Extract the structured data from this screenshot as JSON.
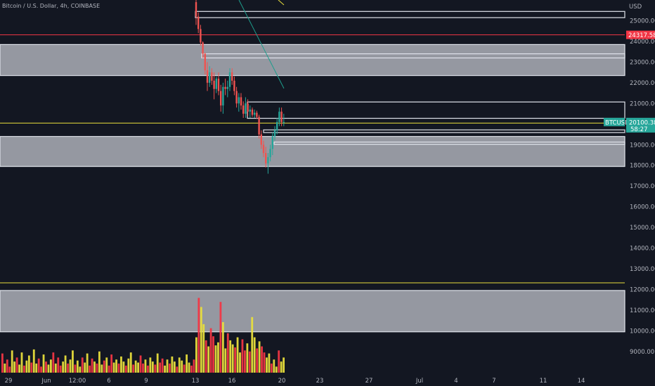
{
  "header": {
    "title": "Bitcoin / U.S. Dollar, 4h, COINBASE"
  },
  "price_axis": {
    "currency": "USD"
  },
  "chart_data": {
    "type": "candlestick",
    "title": "Bitcoin / U.S. Dollar, 4h, COINBASE",
    "ylim": [
      8200,
      25900
    ],
    "y_ticks": [
      9000,
      10000,
      11000,
      12000,
      13000,
      14000,
      15000,
      16000,
      17000,
      18000,
      19000,
      20000,
      21000,
      22000,
      23000,
      24000,
      25000
    ],
    "y_tick_labels": [
      "9000.00",
      "10000.00",
      "11000.00",
      "12000.00",
      "13000.00",
      "14000.00",
      "15000.00",
      "16000.00",
      "17000.00",
      "18000.00",
      "19000.00",
      "20000.00",
      "21000.00",
      "22000.00",
      "23000.00",
      "24000.00",
      "25000.00"
    ],
    "x_ticks": [
      "29",
      "Jun",
      "12:00",
      "6",
      "9",
      "13",
      "16",
      "20",
      "23",
      "27",
      "Jul",
      "4",
      "7",
      "11",
      "14"
    ],
    "grid": false,
    "colors": {
      "bull": "#26a69a",
      "bear": "#ef5350",
      "zone": "#9598a1",
      "red_line": "#f23645",
      "yellow_line": "#e8de3c",
      "trend_line": "#1e9d8c",
      "price_tag": "#26a69a",
      "alert_tag": "#f23645"
    },
    "price_tags": [
      {
        "label": "24317.58",
        "value": 24317.58,
        "kind": "alert"
      },
      {
        "label": "BTCUSD",
        "value": 20100.38
      },
      {
        "label": "20100.38",
        "value": 20100.38
      },
      {
        "label": "58:27"
      }
    ],
    "horizontal_lines": [
      {
        "value": 24317.58,
        "color": "red"
      },
      {
        "value": 20050,
        "color": "yellow"
      },
      {
        "value": 12320,
        "color": "yellow"
      }
    ],
    "zones": [
      {
        "from": 22350,
        "to": 23850,
        "style": "filled"
      },
      {
        "from": 17950,
        "to": 19400,
        "style": "filled"
      },
      {
        "from": 9950,
        "to": 11950,
        "style": "filled"
      },
      {
        "from": 25150,
        "to": 25450,
        "style": "outline"
      },
      {
        "from": 23200,
        "to": 23400,
        "style": "outline"
      },
      {
        "from": 20280,
        "to": 21070,
        "style": "outline"
      },
      {
        "from": 19590,
        "to": 19720,
        "style": "outline"
      },
      {
        "from": 19020,
        "to": 19130,
        "style": "outline"
      }
    ],
    "candles": [
      {
        "time": "Jun 13",
        "open": 25900,
        "high": 26300,
        "low": 24800,
        "close": 25200
      },
      {
        "time": "Jun 13",
        "open": 25200,
        "high": 25400,
        "low": 24400,
        "close": 24600
      },
      {
        "time": "Jun 13",
        "open": 24600,
        "high": 24800,
        "low": 23800,
        "close": 23950
      },
      {
        "time": "Jun 13",
        "open": 23950,
        "high": 24000,
        "low": 23200,
        "close": 23400
      },
      {
        "time": "Jun 14",
        "open": 23400,
        "high": 23450,
        "low": 22400,
        "close": 22600
      },
      {
        "time": "Jun 14",
        "open": 22600,
        "high": 23000,
        "low": 21600,
        "close": 22000
      },
      {
        "time": "Jun 14",
        "open": 22000,
        "high": 22800,
        "low": 21800,
        "close": 22500
      },
      {
        "time": "Jun 14",
        "open": 22500,
        "high": 22700,
        "low": 21900,
        "close": 22100
      },
      {
        "time": "Jun 14",
        "open": 22100,
        "high": 22500,
        "low": 21200,
        "close": 21700
      },
      {
        "time": "Jun 14",
        "open": 21700,
        "high": 22300,
        "low": 21500,
        "close": 22200
      },
      {
        "time": "Jun 15",
        "open": 22200,
        "high": 22500,
        "low": 21400,
        "close": 21600
      },
      {
        "time": "Jun 15",
        "open": 21600,
        "high": 21900,
        "low": 20600,
        "close": 20900
      },
      {
        "time": "Jun 15",
        "open": 20900,
        "high": 22000,
        "low": 20500,
        "close": 21800
      },
      {
        "time": "Jun 15",
        "open": 21800,
        "high": 22200,
        "low": 21400,
        "close": 21700
      },
      {
        "time": "Jun 15",
        "open": 21700,
        "high": 22100,
        "low": 21300,
        "close": 21800
      },
      {
        "time": "Jun 15",
        "open": 21800,
        "high": 22700,
        "low": 21600,
        "close": 22500
      },
      {
        "time": "Jun 16",
        "open": 22500,
        "high": 22700,
        "low": 21900,
        "close": 22100
      },
      {
        "time": "Jun 16",
        "open": 22100,
        "high": 22300,
        "low": 21400,
        "close": 21600
      },
      {
        "time": "Jun 16",
        "open": 21600,
        "high": 21800,
        "low": 20800,
        "close": 21000
      },
      {
        "time": "Jun 16",
        "open": 21000,
        "high": 21500,
        "low": 20600,
        "close": 21300
      },
      {
        "time": "Jun 16",
        "open": 21300,
        "high": 21500,
        "low": 20700,
        "close": 20900
      },
      {
        "time": "Jun 16",
        "open": 20900,
        "high": 21100,
        "low": 20300,
        "close": 20500
      },
      {
        "time": "Jun 17",
        "open": 20500,
        "high": 21300,
        "low": 20300,
        "close": 21000
      },
      {
        "time": "Jun 17",
        "open": 21000,
        "high": 21200,
        "low": 20400,
        "close": 20600
      },
      {
        "time": "Jun 17",
        "open": 20600,
        "high": 20900,
        "low": 20300,
        "close": 20700
      },
      {
        "time": "Jun 17",
        "open": 20700,
        "high": 20800,
        "low": 20350,
        "close": 20450
      },
      {
        "time": "Jun 17",
        "open": 20450,
        "high": 20700,
        "low": 20300,
        "close": 20550
      },
      {
        "time": "Jun 17",
        "open": 20550,
        "high": 20650,
        "low": 20250,
        "close": 20350
      },
      {
        "time": "Jun 18",
        "open": 20350,
        "high": 20450,
        "low": 19300,
        "close": 19500
      },
      {
        "time": "Jun 18",
        "open": 19500,
        "high": 19700,
        "low": 18800,
        "close": 19000
      },
      {
        "time": "Jun 18",
        "open": 19000,
        "high": 19200,
        "low": 18400,
        "close": 18600
      },
      {
        "time": "Jun 18",
        "open": 18600,
        "high": 18900,
        "low": 17900,
        "close": 18100
      },
      {
        "time": "Jun 18",
        "open": 18100,
        "high": 18600,
        "low": 17600,
        "close": 18400
      },
      {
        "time": "Jun 18",
        "open": 18400,
        "high": 19000,
        "low": 18200,
        "close": 18800
      },
      {
        "time": "Jun 19",
        "open": 18800,
        "high": 19600,
        "low": 18500,
        "close": 19400
      },
      {
        "time": "Jun 19",
        "open": 19400,
        "high": 19900,
        "low": 19200,
        "close": 19700
      },
      {
        "time": "Jun 19",
        "open": 19700,
        "high": 20300,
        "low": 19500,
        "close": 20100
      },
      {
        "time": "Jun 19",
        "open": 20100,
        "high": 20800,
        "low": 19900,
        "close": 20600
      },
      {
        "time": "Jun 19",
        "open": 20600,
        "high": 20800,
        "low": 19900,
        "close": 20100
      },
      {
        "time": "Jun 20",
        "open": 20100,
        "high": 20500,
        "low": 19900,
        "close": 20100
      }
    ],
    "volume_colors": [
      "#f23645",
      "#e8de3c"
    ],
    "trend_lines": [
      {
        "from": {
          "time": "Jun 15",
          "value": 26000
        },
        "to": {
          "time": "Jun 20",
          "value": 21900
        }
      },
      {
        "from": {
          "time": "Jun 19",
          "value": 26000
        },
        "to": {
          "time": "Jun 20",
          "value": 25800
        }
      }
    ]
  }
}
